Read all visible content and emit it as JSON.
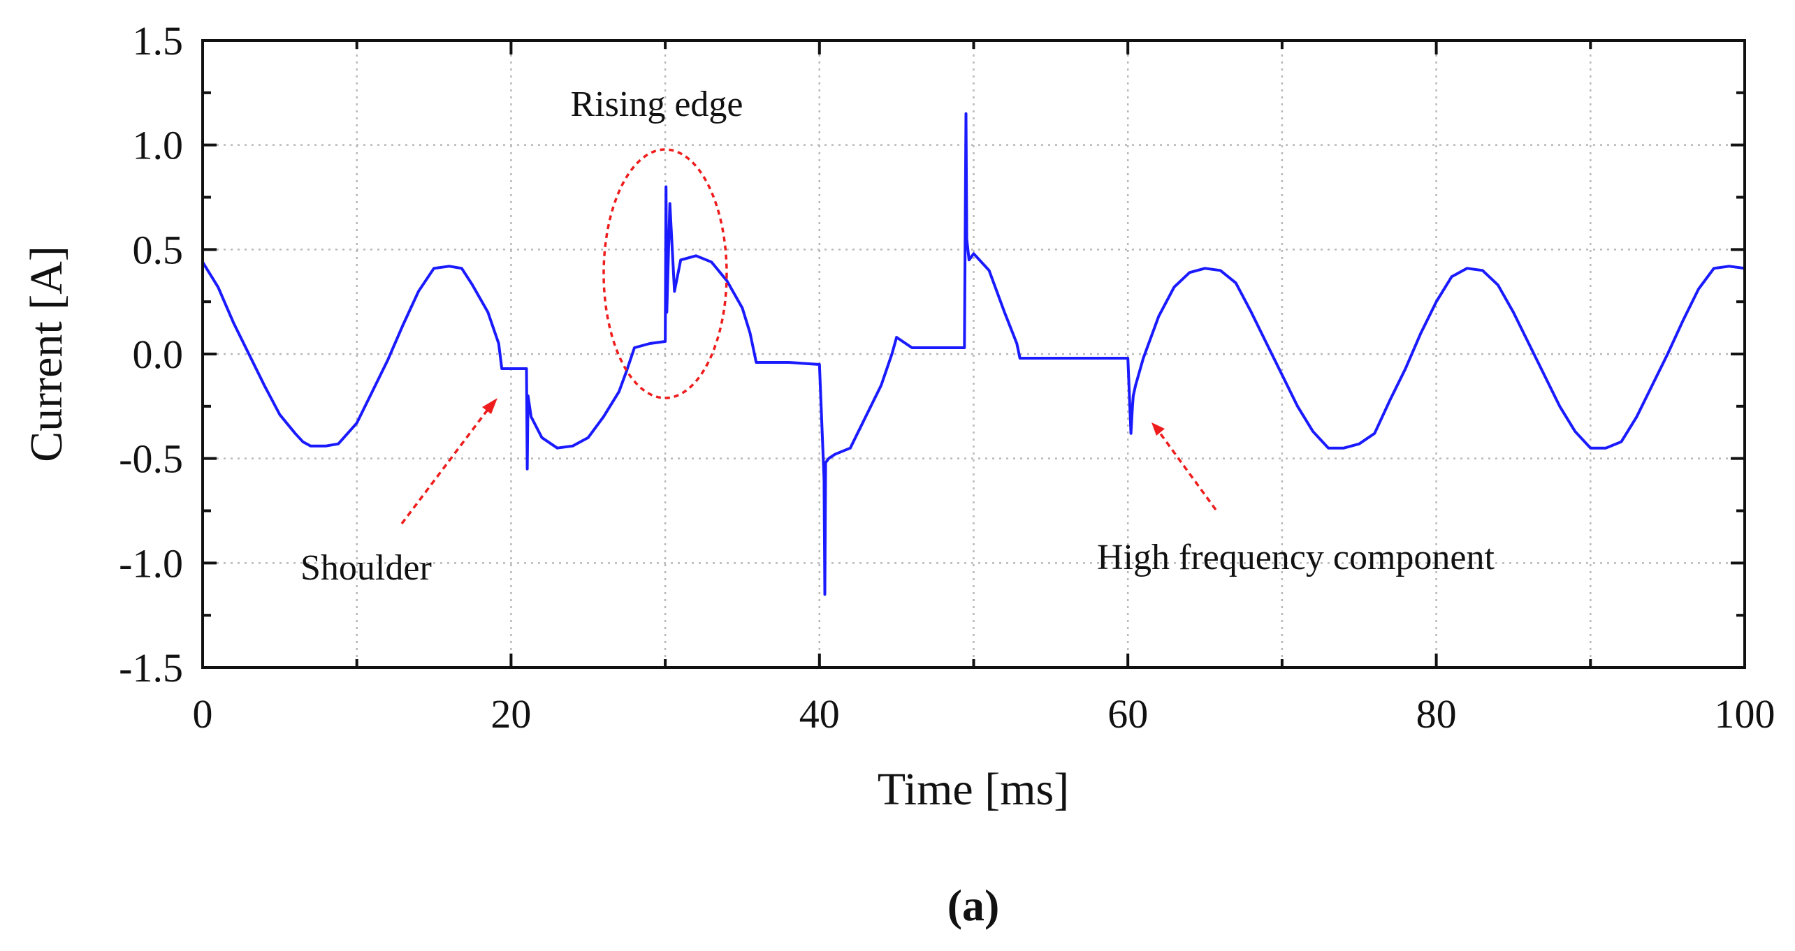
{
  "chart_data": {
    "type": "line",
    "title": "",
    "xlabel": "Time [ms]",
    "ylabel": "Current [A]",
    "xlim": [
      0,
      100
    ],
    "ylim": [
      -1.5,
      1.5
    ],
    "x_ticks": [
      0,
      20,
      40,
      60,
      80,
      100
    ],
    "x_tick_labels": [
      "0",
      "20",
      "40",
      "60",
      "80",
      "100"
    ],
    "y_ticks": [
      -1.5,
      -1.0,
      -0.5,
      0.0,
      0.5,
      1.0,
      1.5
    ],
    "y_tick_labels": [
      "-1.5",
      "-1.0",
      "-0.5",
      "0.0",
      "0.5",
      "1.0",
      "1.5"
    ],
    "grid": true,
    "series": [
      {
        "name": "Current",
        "color": "#1a1aff",
        "x": [
          0,
          1,
          2,
          3,
          4,
          5,
          6,
          6.5,
          7,
          8,
          8.8,
          10,
          11,
          12,
          13,
          14,
          15,
          16,
          16.8,
          17.5,
          18.5,
          19.2,
          19.4,
          20.5,
          21,
          21.05,
          21.1,
          21.3,
          22,
          23,
          24,
          25,
          26,
          27,
          27.5,
          28,
          29,
          30,
          30.05,
          30.1,
          30.3,
          30.6,
          31,
          32,
          33,
          34,
          35,
          35.5,
          35.9,
          36.5,
          38,
          40,
          40.3,
          40.35,
          40.4,
          40.6,
          41,
          42,
          43,
          44,
          44.7,
          45,
          46,
          48,
          49,
          49.4,
          49.5,
          49.55,
          49.7,
          50,
          51,
          52,
          52.8,
          53,
          55,
          57,
          59,
          60,
          60.2,
          60.3,
          60.35,
          60.5,
          61,
          62,
          63,
          64,
          65,
          66,
          67,
          68,
          69,
          70,
          71,
          72,
          73,
          74,
          75,
          76,
          77,
          78,
          79,
          80,
          81,
          82,
          83,
          84,
          85,
          86,
          87,
          88,
          89,
          90,
          91,
          92,
          93,
          94,
          95,
          96,
          97,
          98,
          99,
          100
        ],
        "y": [
          0.44,
          0.32,
          0.15,
          0.0,
          -0.15,
          -0.29,
          -0.38,
          -0.42,
          -0.44,
          -0.44,
          -0.43,
          -0.33,
          -0.18,
          -0.03,
          0.14,
          0.3,
          0.41,
          0.42,
          0.41,
          0.33,
          0.2,
          0.05,
          -0.07,
          -0.07,
          -0.07,
          -0.55,
          -0.2,
          -0.3,
          -0.4,
          -0.45,
          -0.44,
          -0.4,
          -0.3,
          -0.18,
          -0.08,
          0.03,
          0.05,
          0.06,
          0.8,
          0.2,
          0.72,
          0.3,
          0.45,
          0.47,
          0.44,
          0.35,
          0.22,
          0.1,
          -0.04,
          -0.04,
          -0.04,
          -0.05,
          -0.6,
          -1.15,
          -0.52,
          -0.5,
          -0.48,
          -0.45,
          -0.3,
          -0.15,
          0.0,
          0.08,
          0.03,
          0.03,
          0.03,
          0.03,
          1.15,
          0.55,
          0.45,
          0.48,
          0.4,
          0.2,
          0.05,
          -0.02,
          -0.02,
          -0.02,
          -0.02,
          -0.02,
          -0.38,
          -0.25,
          -0.2,
          -0.15,
          -0.02,
          0.18,
          0.32,
          0.39,
          0.41,
          0.4,
          0.34,
          0.2,
          0.05,
          -0.1,
          -0.25,
          -0.37,
          -0.45,
          -0.45,
          -0.43,
          -0.38,
          -0.22,
          -0.07,
          0.1,
          0.25,
          0.37,
          0.41,
          0.4,
          0.33,
          0.2,
          0.05,
          -0.1,
          -0.25,
          -0.37,
          -0.45,
          -0.45,
          -0.42,
          -0.3,
          -0.15,
          0.0,
          0.16,
          0.31,
          0.41,
          0.42,
          0.41
        ]
      }
    ],
    "annotations": [
      {
        "text": "Rising edge",
        "x": 30,
        "y": 1.15,
        "marker": "ellipse"
      },
      {
        "text": "Shoulder",
        "x": 19.5,
        "y": -0.05,
        "marker": "arrow"
      },
      {
        "text": "High frequency component",
        "x": 61,
        "y": -0.2,
        "marker": "arrow"
      }
    ]
  },
  "caption": "(a)"
}
